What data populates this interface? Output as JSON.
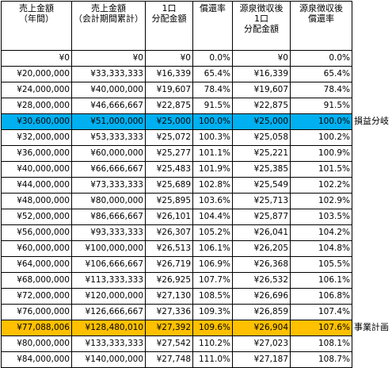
{
  "headers": [
    "売上金額\n（年間）",
    "売上金額\n（会計期間累計）",
    "1口\n分配金額",
    "償還率",
    "源泉徴収後\n1口\n分配金額",
    "源泉徴収後\n償還率"
  ],
  "rows": [
    {
      "cells": [
        "¥0",
        "¥0",
        "¥0",
        "0.0%",
        "¥0",
        "0.0%"
      ],
      "highlight": ""
    },
    {
      "cells": [
        "¥20,000,000",
        "¥33,333,333",
        "¥16,339",
        "65.4%",
        "¥16,339",
        "65.4%"
      ],
      "highlight": ""
    },
    {
      "cells": [
        "¥24,000,000",
        "¥40,000,000",
        "¥19,607",
        "78.4%",
        "¥19,607",
        "78.4%"
      ],
      "highlight": ""
    },
    {
      "cells": [
        "¥28,000,000",
        "¥46,666,667",
        "¥22,875",
        "91.5%",
        "¥22,875",
        "91.5%"
      ],
      "highlight": ""
    },
    {
      "cells": [
        "¥30,600,000",
        "¥51,000,000",
        "¥25,000",
        "100.0%",
        "¥25,000",
        "100.0%"
      ],
      "highlight": "blue",
      "note": "損益分岐"
    },
    {
      "cells": [
        "¥32,000,000",
        "¥53,333,333",
        "¥25,072",
        "100.3%",
        "¥25,058",
        "100.2%"
      ],
      "highlight": ""
    },
    {
      "cells": [
        "¥36,000,000",
        "¥60,000,000",
        "¥25,277",
        "101.1%",
        "¥25,221",
        "100.9%"
      ],
      "highlight": ""
    },
    {
      "cells": [
        "¥40,000,000",
        "¥66,666,667",
        "¥25,483",
        "101.9%",
        "¥25,385",
        "101.5%"
      ],
      "highlight": ""
    },
    {
      "cells": [
        "¥44,000,000",
        "¥73,333,333",
        "¥25,689",
        "102.8%",
        "¥25,549",
        "102.2%"
      ],
      "highlight": ""
    },
    {
      "cells": [
        "¥48,000,000",
        "¥80,000,000",
        "¥25,895",
        "103.6%",
        "¥25,713",
        "102.9%"
      ],
      "highlight": ""
    },
    {
      "cells": [
        "¥52,000,000",
        "¥86,666,667",
        "¥26,101",
        "104.4%",
        "¥25,877",
        "103.5%"
      ],
      "highlight": ""
    },
    {
      "cells": [
        "¥56,000,000",
        "¥93,333,333",
        "¥26,307",
        "105.2%",
        "¥26,041",
        "104.2%"
      ],
      "highlight": ""
    },
    {
      "cells": [
        "¥60,000,000",
        "¥100,000,000",
        "¥26,513",
        "106.1%",
        "¥26,205",
        "104.8%"
      ],
      "highlight": ""
    },
    {
      "cells": [
        "¥64,000,000",
        "¥106,666,667",
        "¥26,719",
        "106.9%",
        "¥26,368",
        "105.5%"
      ],
      "highlight": ""
    },
    {
      "cells": [
        "¥68,000,000",
        "¥113,333,333",
        "¥26,925",
        "107.7%",
        "¥26,532",
        "106.1%"
      ],
      "highlight": ""
    },
    {
      "cells": [
        "¥72,000,000",
        "¥120,000,000",
        "¥27,130",
        "108.5%",
        "¥26,696",
        "106.8%"
      ],
      "highlight": ""
    },
    {
      "cells": [
        "¥76,000,000",
        "¥126,666,667",
        "¥27,336",
        "109.3%",
        "¥26,859",
        "107.4%"
      ],
      "highlight": ""
    },
    {
      "cells": [
        "¥77,088,006",
        "¥128,480,010",
        "¥27,392",
        "109.6%",
        "¥26,904",
        "107.6%"
      ],
      "highlight": "orange",
      "note": "事業計画"
    },
    {
      "cells": [
        "¥80,000,000",
        "¥133,333,333",
        "¥27,542",
        "110.2%",
        "¥27,023",
        "108.1%"
      ],
      "highlight": ""
    },
    {
      "cells": [
        "¥84,000,000",
        "¥140,000,000",
        "¥27,748",
        "111.0%",
        "¥27,187",
        "108.7%"
      ],
      "highlight": ""
    }
  ],
  "colors": {
    "highlight_blue": "#00b0f0",
    "highlight_orange": "#ffc000"
  }
}
